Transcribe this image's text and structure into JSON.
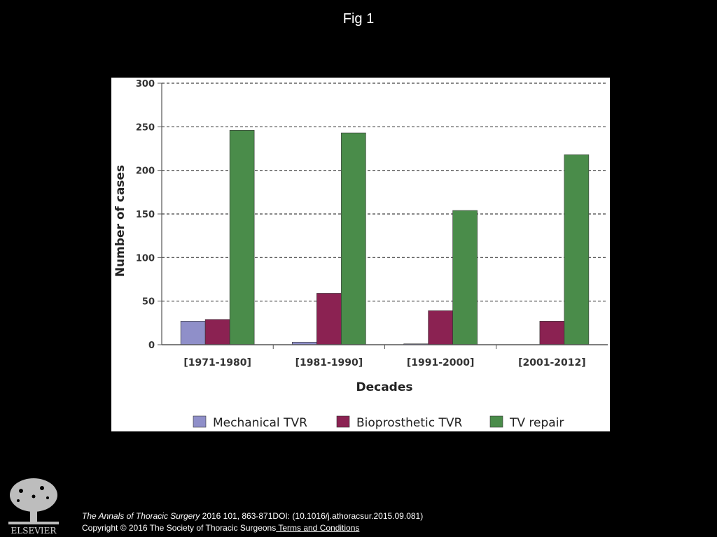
{
  "header": {
    "title": "Fig 1"
  },
  "chart_data": {
    "type": "bar",
    "categories": [
      "[1971-1980]",
      "[1981-1990]",
      "[1991-2000]",
      "[2001-2012]"
    ],
    "series": [
      {
        "name": "Mechanical TVR",
        "values": [
          27,
          3,
          1,
          0
        ],
        "color": "#8f8fc9"
      },
      {
        "name": "Bioprosthetic TVR",
        "values": [
          29,
          59,
          39,
          27
        ],
        "color": "#8b2252"
      },
      {
        "name": "TV repair",
        "values": [
          246,
          243,
          154,
          218
        ],
        "color": "#4a8c4a"
      }
    ],
    "xlabel": "Decades",
    "ylabel": "Number of cases",
    "ylim": [
      0,
      300
    ],
    "yticks": [
      "0",
      "50",
      "100",
      "150",
      "200",
      "250",
      "300"
    ],
    "grid": true,
    "legend": "bottom"
  },
  "footer": {
    "journal": "The Annals of Thoracic Surgery",
    "citation_rest": " 2016 101, 863-871DOI: (10.1016/j.athoracsur.2015.09.081)",
    "copyright": "Copyright © 2016 The Society of Thoracic Surgeons",
    "terms_link": " Terms and Conditions",
    "publisher_logo": "ELSEVIER"
  }
}
